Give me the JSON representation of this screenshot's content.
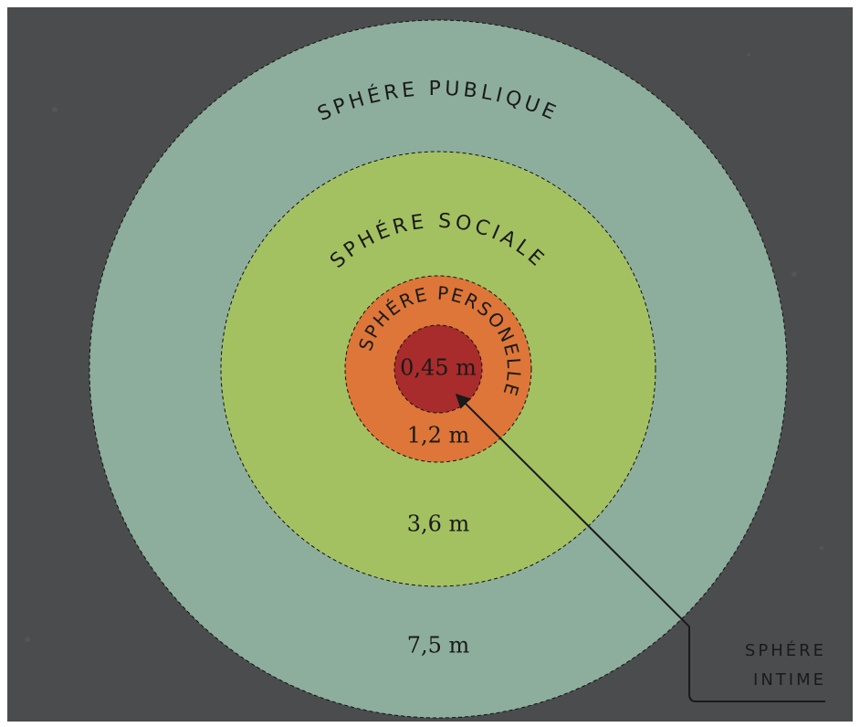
{
  "zones": [
    {
      "name": "SPHÉRE PUBLIQUE",
      "distance": "7,5 m"
    },
    {
      "name": "SPHÉRE SOCIALE",
      "distance": "3,6 m"
    },
    {
      "name": "SPHÉRE PERSONELLE",
      "distance": "1,2 m"
    },
    {
      "distance": "0,45 m"
    }
  ],
  "callout": {
    "lines": [
      "SPHÉRE",
      "INTIME"
    ]
  }
}
